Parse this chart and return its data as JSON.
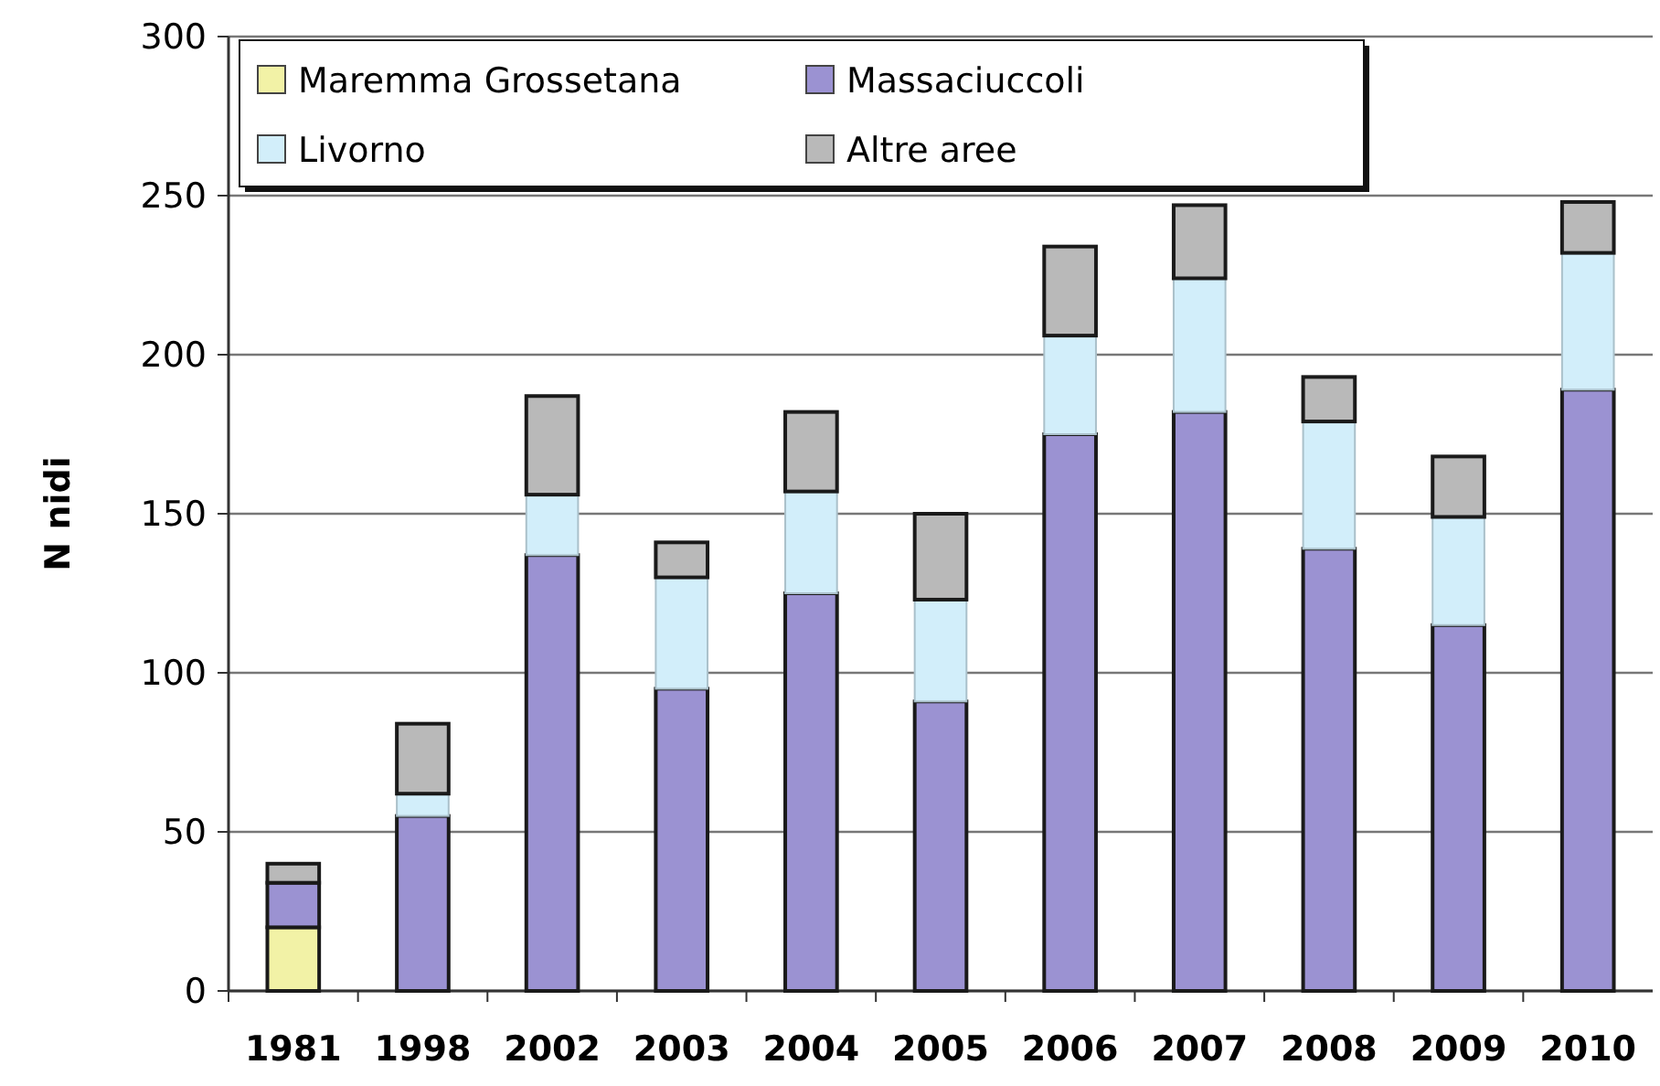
{
  "chart_data": {
    "type": "bar",
    "stacked": true,
    "ylabel": "N nidi",
    "categories": [
      "1981",
      "1998",
      "2002",
      "2003",
      "2004",
      "2005",
      "2006",
      "2007",
      "2008",
      "2009",
      "2010"
    ],
    "series": [
      {
        "name": "Maremma Grossetana",
        "color": "#f2f2a6",
        "values": [
          20,
          0,
          0,
          0,
          0,
          0,
          0,
          0,
          0,
          0,
          0
        ]
      },
      {
        "name": "Massaciuccoli",
        "color": "#9b92d2",
        "values": [
          14,
          55,
          137,
          95,
          125,
          91,
          175,
          182,
          139,
          115,
          189
        ]
      },
      {
        "name": "Livorno",
        "color": "#d2eefa",
        "values": [
          0,
          7,
          19,
          35,
          32,
          32,
          31,
          42,
          40,
          34,
          43
        ]
      },
      {
        "name": "Altre aree",
        "color": "#b9b9b9",
        "values": [
          6,
          22,
          31,
          11,
          25,
          27,
          28,
          23,
          14,
          19,
          16
        ]
      }
    ],
    "ylim": [
      0,
      300
    ],
    "yticks": [
      0,
      50,
      100,
      150,
      200,
      250,
      300
    ],
    "grid": "y",
    "legend": "top left"
  }
}
